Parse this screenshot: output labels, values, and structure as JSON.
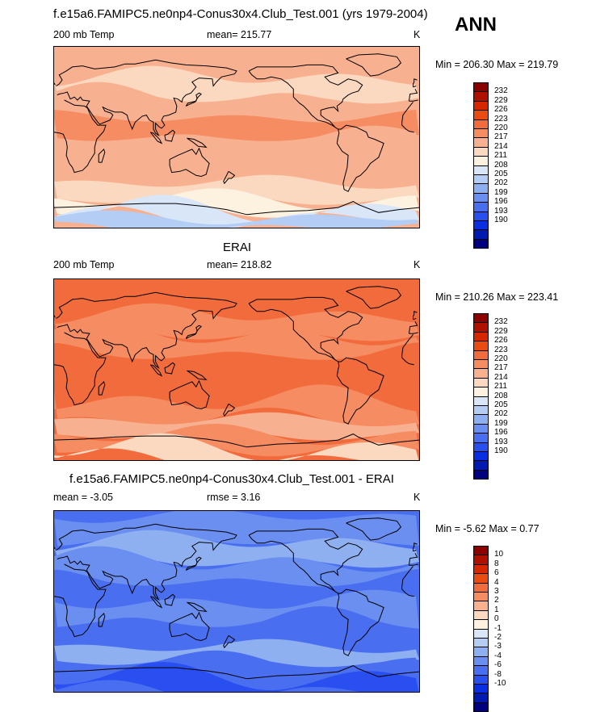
{
  "header": {
    "title": "f.e15a6.FAMIPC5.ne0np4-Conus30x4.Club_Test.001 (yrs 1979-2004)",
    "season": "ANN"
  },
  "chart_data": [
    {
      "type": "heatmap",
      "title": "",
      "left_label": "200 mb Temp",
      "stat_label": "mean= 215.77",
      "units": "K",
      "minmax": "Min = 206.30 Max = 219.79",
      "levels": [
        "232",
        "229",
        "226",
        "223",
        "220",
        "217",
        "214",
        "211",
        "208",
        "205",
        "202",
        "199",
        "196",
        "193",
        "190"
      ],
      "colors": [
        "#8b0000",
        "#b01000",
        "#d62800",
        "#ea4b10",
        "#f26b3c",
        "#f58c62",
        "#f8b190",
        "#fbd9c0",
        "#fdf1e0",
        "#d8e6f8",
        "#b3cdf5",
        "#8fb0f0",
        "#6a8ff0",
        "#4a6ef0",
        "#2a4ff0",
        "#0a2fe0",
        "#001ab0",
        "#000080"
      ],
      "base_color": "#f8b190",
      "bands": [
        {
          "lat": 85,
          "color": "#f8b190"
        },
        {
          "lat": 60,
          "color": "#fbd9c0"
        },
        {
          "lat": 40,
          "color": "#f8b190"
        },
        {
          "lat": 20,
          "color": "#f58c62"
        },
        {
          "lat": 0,
          "color": "#f8b190"
        },
        {
          "lat": -20,
          "color": "#f8b190"
        },
        {
          "lat": -45,
          "color": "#fbd9c0"
        },
        {
          "lat": -62,
          "color": "#fdf1e0"
        },
        {
          "lat": -72,
          "color": "#d8e6f8"
        },
        {
          "lat": -80,
          "color": "#b3cdf5"
        }
      ]
    },
    {
      "type": "heatmap",
      "title": "ERAI",
      "left_label": "200 mb Temp",
      "stat_label": "mean= 218.82",
      "units": "K",
      "minmax": "Min = 210.26 Max = 223.41",
      "levels": [
        "232",
        "229",
        "226",
        "223",
        "220",
        "217",
        "214",
        "211",
        "208",
        "205",
        "202",
        "199",
        "196",
        "193",
        "190"
      ],
      "colors": [
        "#8b0000",
        "#b01000",
        "#d62800",
        "#ea4b10",
        "#f26b3c",
        "#f58c62",
        "#f8b190",
        "#fbd9c0",
        "#fdf1e0",
        "#d8e6f8",
        "#b3cdf5",
        "#8fb0f0",
        "#6a8ff0",
        "#4a6ef0",
        "#2a4ff0",
        "#0a2fe0",
        "#001ab0",
        "#000080"
      ],
      "base_color": "#f26b3c",
      "bands": [
        {
          "lat": 80,
          "color": "#f26b3c"
        },
        {
          "lat": 55,
          "color": "#f58c62"
        },
        {
          "lat": 35,
          "color": "#f58c62"
        },
        {
          "lat": 15,
          "color": "#f26b3c"
        },
        {
          "lat": -10,
          "color": "#f26b3c"
        },
        {
          "lat": -30,
          "color": "#f58c62"
        },
        {
          "lat": -50,
          "color": "#f8b190"
        },
        {
          "lat": -65,
          "color": "#f58c62"
        },
        {
          "lat": -78,
          "color": "#fbd9c0"
        }
      ]
    },
    {
      "type": "heatmap",
      "title": "f.e15a6.FAMIPC5.ne0np4-Conus30x4.Club_Test.001 - ERAI",
      "left_label": "mean =  -3.05",
      "stat_label": "rmse =   3.16",
      "units": "K",
      "minmax": "Min =  -5.62 Max =   0.77",
      "levels": [
        "10",
        "8",
        "6",
        "4",
        "3",
        "2",
        "1",
        "0",
        "-1",
        "-2",
        "-3",
        "-4",
        "-6",
        "-8",
        "-10"
      ],
      "colors": [
        "#8b0000",
        "#b01000",
        "#d62800",
        "#ea4b10",
        "#f26b3c",
        "#f58c62",
        "#f8b190",
        "#fbd9c0",
        "#fdf1e0",
        "#d8e6f8",
        "#b3cdf5",
        "#8fb0f0",
        "#6a8ff0",
        "#4a6ef0",
        "#2a4ff0",
        "#0a2fe0",
        "#001ab0",
        "#000080"
      ],
      "base_color": "#4a6ef0",
      "bands": [
        {
          "lat": 85,
          "color": "#6a8ff0"
        },
        {
          "lat": 60,
          "color": "#8fb0f0"
        },
        {
          "lat": 40,
          "color": "#6a8ff0"
        },
        {
          "lat": 20,
          "color": "#4a6ef0"
        },
        {
          "lat": 0,
          "color": "#6a8ff0"
        },
        {
          "lat": -20,
          "color": "#4a6ef0"
        },
        {
          "lat": -45,
          "color": "#8fb0f0"
        },
        {
          "lat": -60,
          "color": "#4a6ef0"
        },
        {
          "lat": -75,
          "color": "#2a4ff0"
        }
      ]
    }
  ]
}
